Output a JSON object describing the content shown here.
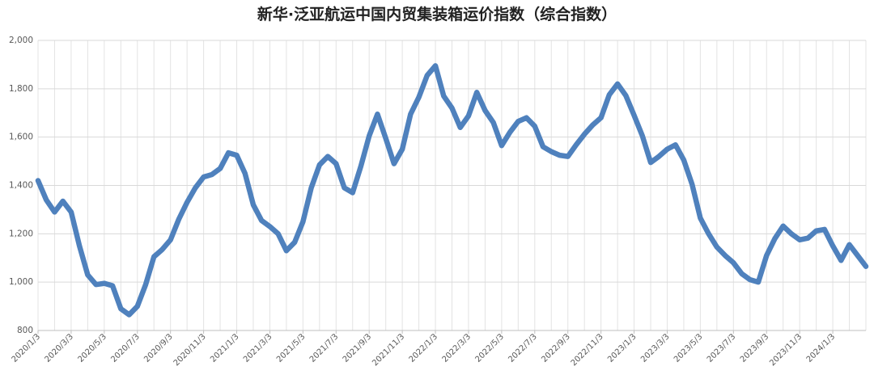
{
  "chart_data": {
    "type": "line",
    "title": "新华·泛亚航运中国内贸集装箱运价指数（综合指数）",
    "categories": [
      "2020/1/3",
      null,
      null,
      null,
      "2020/3/3",
      null,
      null,
      null,
      "2020/5/3",
      null,
      null,
      null,
      "2020/7/3",
      null,
      null,
      null,
      "2020/9/3",
      null,
      null,
      null,
      "2020/11/3",
      null,
      null,
      null,
      "2021/1/3",
      null,
      null,
      null,
      "2021/3/3",
      null,
      null,
      null,
      "2021/5/3",
      null,
      null,
      null,
      "2021/7/3",
      null,
      null,
      null,
      "2021/9/3",
      null,
      null,
      null,
      "2021/11/3",
      null,
      null,
      null,
      "2022/1/3",
      null,
      null,
      null,
      "2022/3/3",
      null,
      null,
      null,
      "2022/5/3",
      null,
      null,
      null,
      "2022/7/3",
      null,
      null,
      null,
      "2022/9/3",
      null,
      null,
      null,
      "2022/11/3",
      null,
      null,
      null,
      "2023/1/3",
      null,
      null,
      null,
      "2023/3/3",
      null,
      null,
      null,
      "2023/5/3",
      null,
      null,
      null,
      "2023/7/3",
      null,
      null,
      null,
      "2023/9/3",
      null,
      null,
      null,
      "2023/11/3",
      null,
      null,
      null,
      "2024/1/3",
      null,
      null,
      null,
      null
    ],
    "series": [
      {
        "name": "综合指数",
        "color": "#4f81bd",
        "values": [
          1420,
          1340,
          1290,
          1335,
          1290,
          1150,
          1030,
          990,
          995,
          985,
          890,
          865,
          900,
          990,
          1105,
          1135,
          1175,
          1260,
          1330,
          1390,
          1435,
          1445,
          1470,
          1535,
          1525,
          1450,
          1320,
          1255,
          1230,
          1200,
          1130,
          1165,
          1250,
          1390,
          1485,
          1520,
          1490,
          1390,
          1370,
          1480,
          1605,
          1695,
          1595,
          1490,
          1550,
          1695,
          1765,
          1855,
          1895,
          1770,
          1720,
          1640,
          1688,
          1785,
          1710,
          1660,
          1565,
          1620,
          1665,
          1680,
          1645,
          1560,
          1540,
          1525,
          1520,
          1568,
          1612,
          1650,
          1680,
          1775,
          1820,
          1772,
          1690,
          1605,
          1495,
          1520,
          1550,
          1568,
          1505,
          1405,
          1265,
          1200,
          1145,
          1110,
          1080,
          1035,
          1010,
          1000,
          1110,
          1180,
          1232,
          1200,
          1175,
          1182,
          1212,
          1218,
          1150,
          1090,
          1155,
          1110,
          1065
        ]
      }
    ],
    "ylim": [
      800,
      2000
    ],
    "yticks": [
      800,
      {
        "value": 1000,
        "label": "1,000"
      },
      {
        "value": 1200,
        "label": "1,200"
      },
      {
        "value": 1400,
        "label": "1,400"
      },
      {
        "value": 1600,
        "label": "1,600"
      },
      {
        "value": 1800,
        "label": "1,800"
      },
      {
        "value": 2000,
        "label": "2,000"
      }
    ],
    "grid": true
  }
}
